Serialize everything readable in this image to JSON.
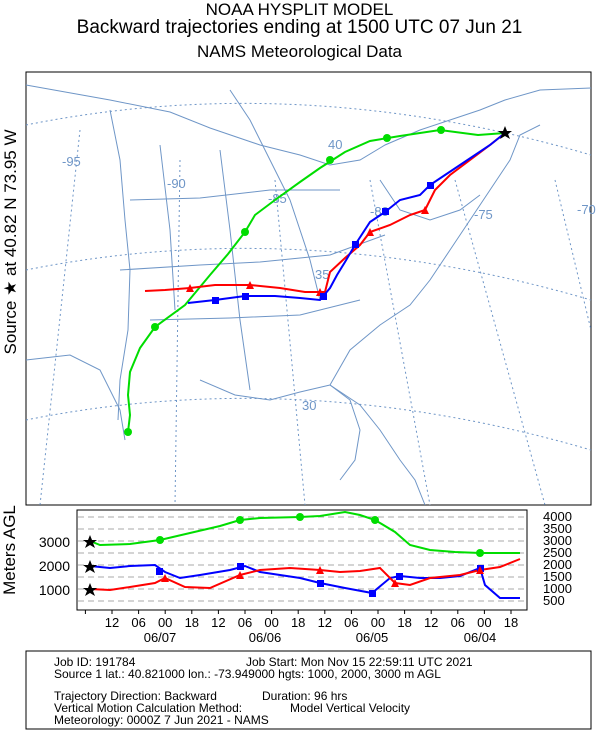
{
  "header": {
    "line1": "NOAA HYSPLIT MODEL",
    "line2": "Backward trajectories ending at 1500 UTC 07 Jun 21",
    "line3": "NAMS Meteorological Data"
  },
  "side_label": "Source ★  at   40.82 N   73.95 W",
  "meters_label": "Meters AGL",
  "map": {
    "lon_labels": [
      "-95",
      "-90",
      "-85",
      "-80",
      "-75",
      "-70"
    ],
    "lat_labels": [
      "40",
      "35",
      "30"
    ]
  },
  "height_panel": {
    "left_heights": [
      "3000",
      "2000",
      "1000"
    ],
    "right_scale": [
      "4000",
      "3500",
      "3000",
      "2500",
      "2000",
      "1500",
      "1000",
      "500"
    ],
    "hour_ticks": [
      "18",
      "12",
      "06",
      "00",
      "18",
      "12",
      "06",
      "00",
      "18",
      "12",
      "06",
      "00",
      "18",
      "12",
      "06",
      "00",
      "18"
    ],
    "date_labels": [
      "06/07",
      "06/06",
      "06/05",
      "06/04"
    ]
  },
  "info": {
    "job_id": "Job ID: 191784",
    "job_start": "Job Start: Mon Nov 15 22:59:11 UTC 2021",
    "source": "Source 1 lat.: 40.821000  lon.: -73.949000  hgts: 1000, 2000, 3000 m AGL",
    "direction": "Trajectory Direction: Backward",
    "duration": "Duration: 96 hrs",
    "vertical": "Vertical Motion Calculation Method:",
    "vertical_value": "Model Vertical Velocity",
    "meteorology": "Meteorology: 0000Z  7 Jun 2021 - NAMS"
  },
  "colors": {
    "traj_1000m": "#ff0000",
    "traj_2000m": "#0000ff",
    "traj_3000m": "#00dd00",
    "map_lines": "#6f96c7"
  }
}
